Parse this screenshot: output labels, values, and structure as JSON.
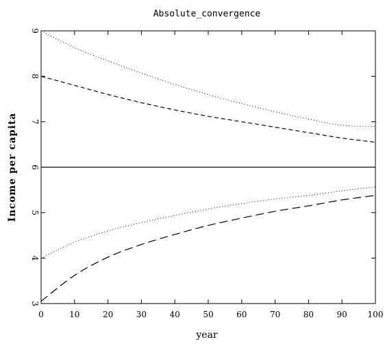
{
  "chart_data": {
    "type": "line",
    "title": "Absolute_convergence",
    "xlabel": "year",
    "ylabel": "Income per capita",
    "xlim": [
      0,
      100
    ],
    "ylim": [
      3,
      9
    ],
    "xticks": [
      "0",
      "10",
      "20",
      "30",
      "40",
      "50",
      "60",
      "70",
      "80",
      "90",
      "100"
    ],
    "yticks": [
      "3",
      "4",
      "5",
      "6",
      "7",
      "8",
      "9"
    ],
    "grid": false,
    "legend": "none",
    "x": [
      0,
      10,
      20,
      30,
      40,
      50,
      60,
      70,
      80,
      90,
      100
    ],
    "series": [
      {
        "style": "dotted",
        "color": "#000000",
        "values": [
          9.0,
          8.63,
          8.34,
          8.07,
          7.82,
          7.6,
          7.4,
          7.22,
          7.06,
          6.92,
          6.9
        ]
      },
      {
        "style": "short-dash",
        "color": "#000000",
        "values": [
          8.0,
          7.8,
          7.6,
          7.42,
          7.26,
          7.12,
          7.0,
          6.88,
          6.76,
          6.64,
          6.55
        ]
      },
      {
        "style": "solid",
        "color": "#000000",
        "values": [
          6.0,
          6.0,
          6.0,
          6.0,
          6.0,
          6.0,
          6.0,
          6.0,
          6.0,
          6.0,
          6.0
        ]
      },
      {
        "style": "dotted",
        "color": "#000000",
        "values": [
          4.0,
          4.35,
          4.6,
          4.78,
          4.94,
          5.08,
          5.2,
          5.3,
          5.38,
          5.48,
          5.57
        ]
      },
      {
        "style": "long-dash",
        "color": "#000000",
        "values": [
          3.05,
          3.62,
          4.02,
          4.3,
          4.52,
          4.72,
          4.88,
          5.03,
          5.15,
          5.28,
          5.38
        ]
      }
    ]
  }
}
